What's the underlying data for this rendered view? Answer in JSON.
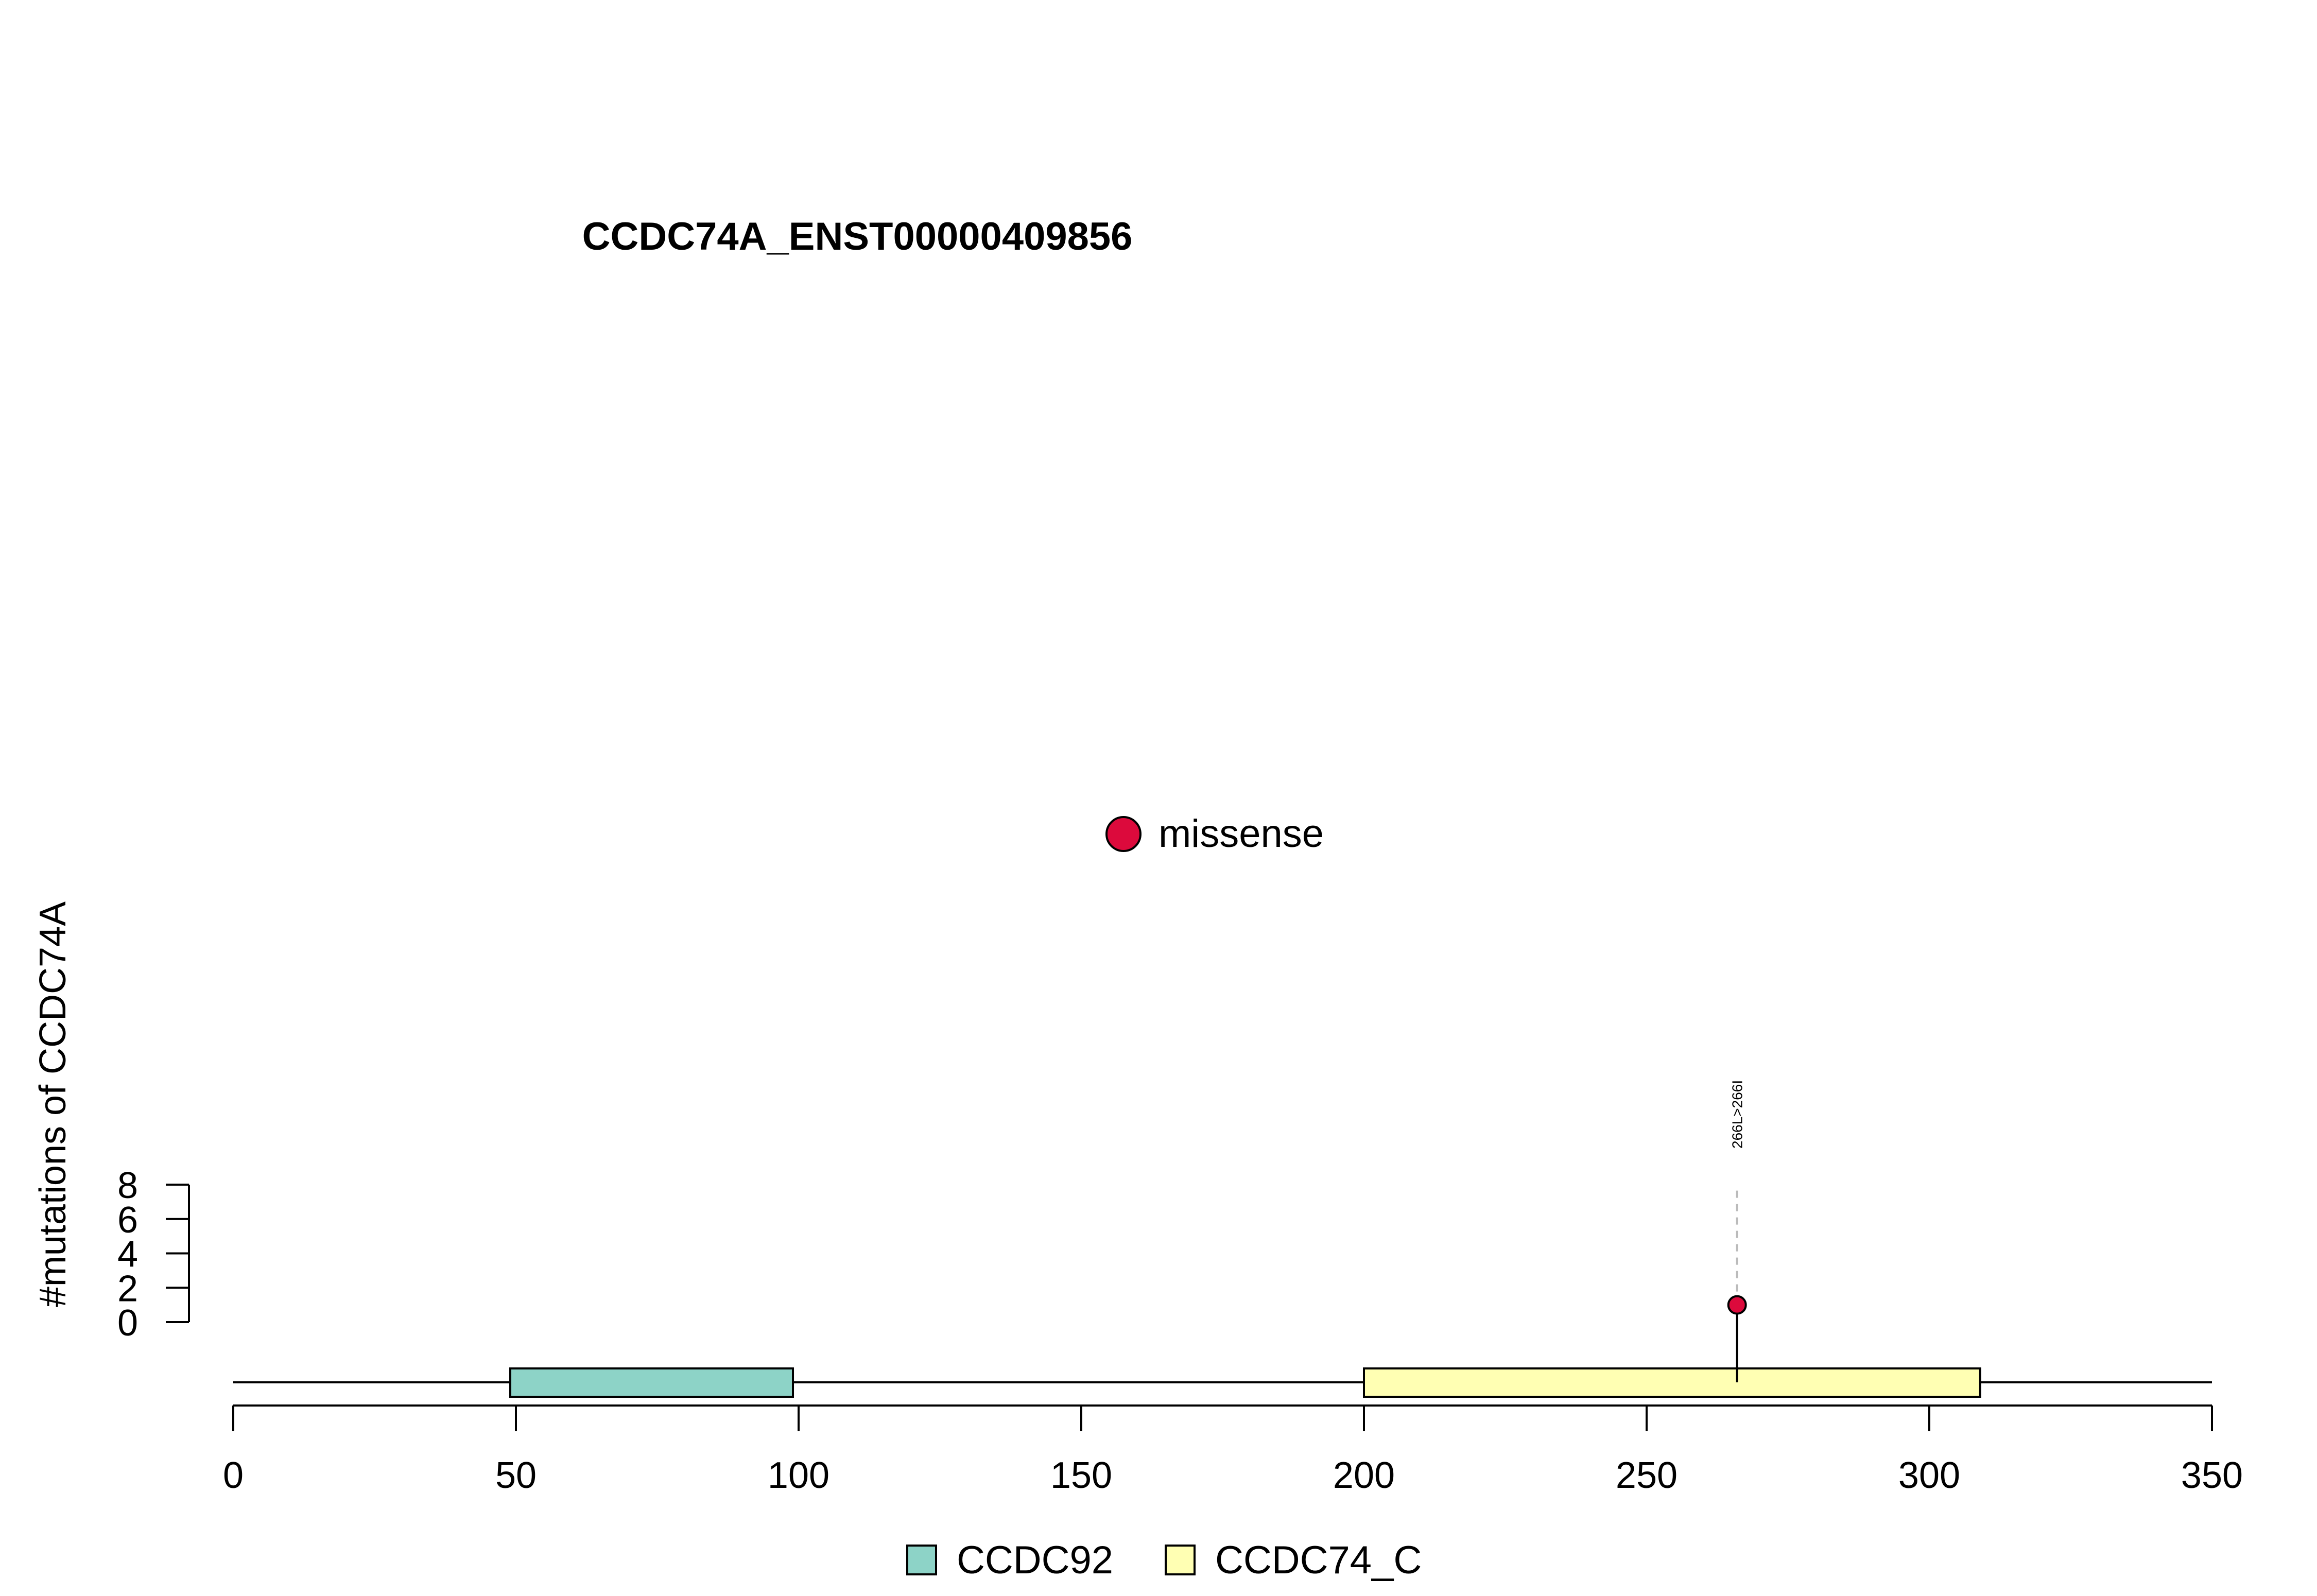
{
  "chart_data": {
    "type": "lollipop",
    "title": "CCDC74A_ENST00000409856",
    "ylabel": "#mutations of CCDC74A",
    "xlabel": "",
    "xlim": [
      0,
      350
    ],
    "x_ticks": [
      0,
      50,
      100,
      150,
      200,
      250,
      300,
      350
    ],
    "ylim": [
      0,
      8
    ],
    "y_ticks": [
      0,
      2,
      4,
      6,
      8
    ],
    "protein_length": 350,
    "domains": [
      {
        "name": "CCDC92",
        "start": 49,
        "end": 99,
        "color": "#8DD3C7"
      },
      {
        "name": "CCDC74_C",
        "start": 200,
        "end": 309,
        "color": "#FFFFB3"
      }
    ],
    "mutations": [
      {
        "position": 266,
        "count": 1,
        "label": "266L>266I",
        "type": "missense",
        "color": "#DC0A3C"
      }
    ],
    "mutation_legend": [
      {
        "label": "missense",
        "color": "#DC0A3C"
      }
    ],
    "domain_legend": [
      {
        "label": "CCDC92",
        "color": "#8DD3C7"
      },
      {
        "label": "CCDC74_C",
        "color": "#FFFFB3"
      }
    ],
    "grid": false
  }
}
